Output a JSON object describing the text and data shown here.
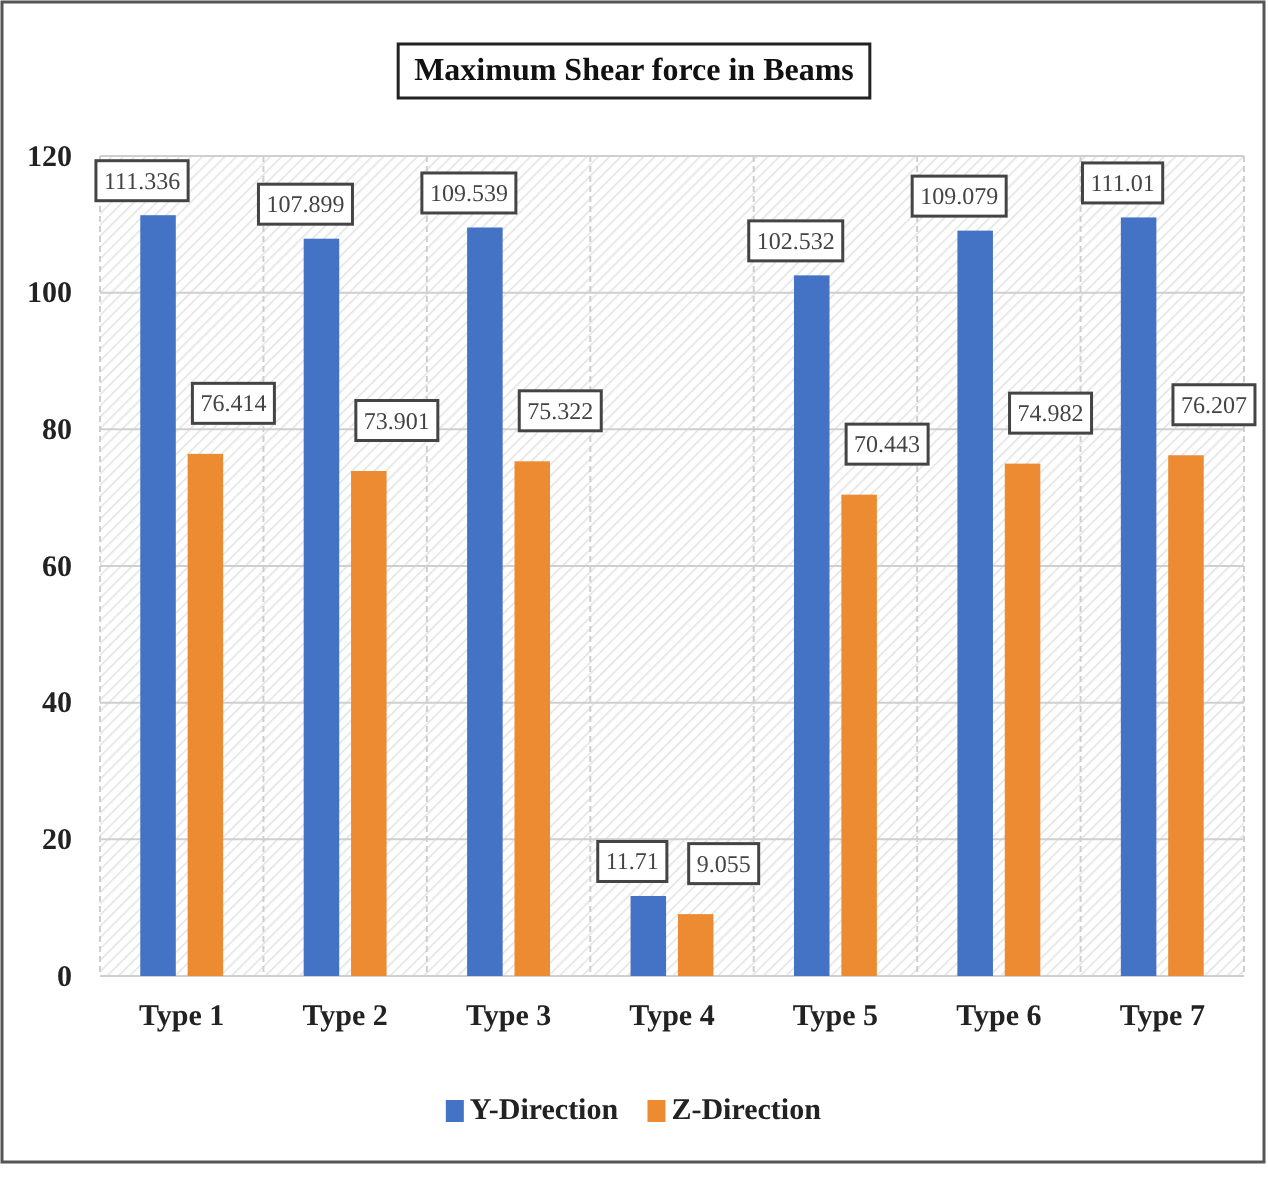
{
  "chart_data": {
    "type": "bar",
    "title": "Maximum  Shear force in Beams",
    "categories": [
      "Type 1",
      "Type 2",
      "Type 3",
      "Type 4",
      "Type 5",
      "Type 6",
      "Type 7"
    ],
    "series": [
      {
        "name": "Y-Direction",
        "color": "#4472c4",
        "values": [
          111.336,
          107.899,
          109.539,
          11.71,
          102.532,
          109.079,
          111.01
        ]
      },
      {
        "name": "Z-Direction",
        "color": "#ed8b33",
        "values": [
          76.414,
          73.901,
          75.322,
          9.055,
          70.443,
          74.982,
          76.207
        ]
      }
    ],
    "ylim": [
      0,
      120
    ],
    "yticks": [
      0,
      20,
      40,
      60,
      80,
      100,
      120
    ],
    "grid": true,
    "legend": "bottom",
    "data_labels": true
  }
}
